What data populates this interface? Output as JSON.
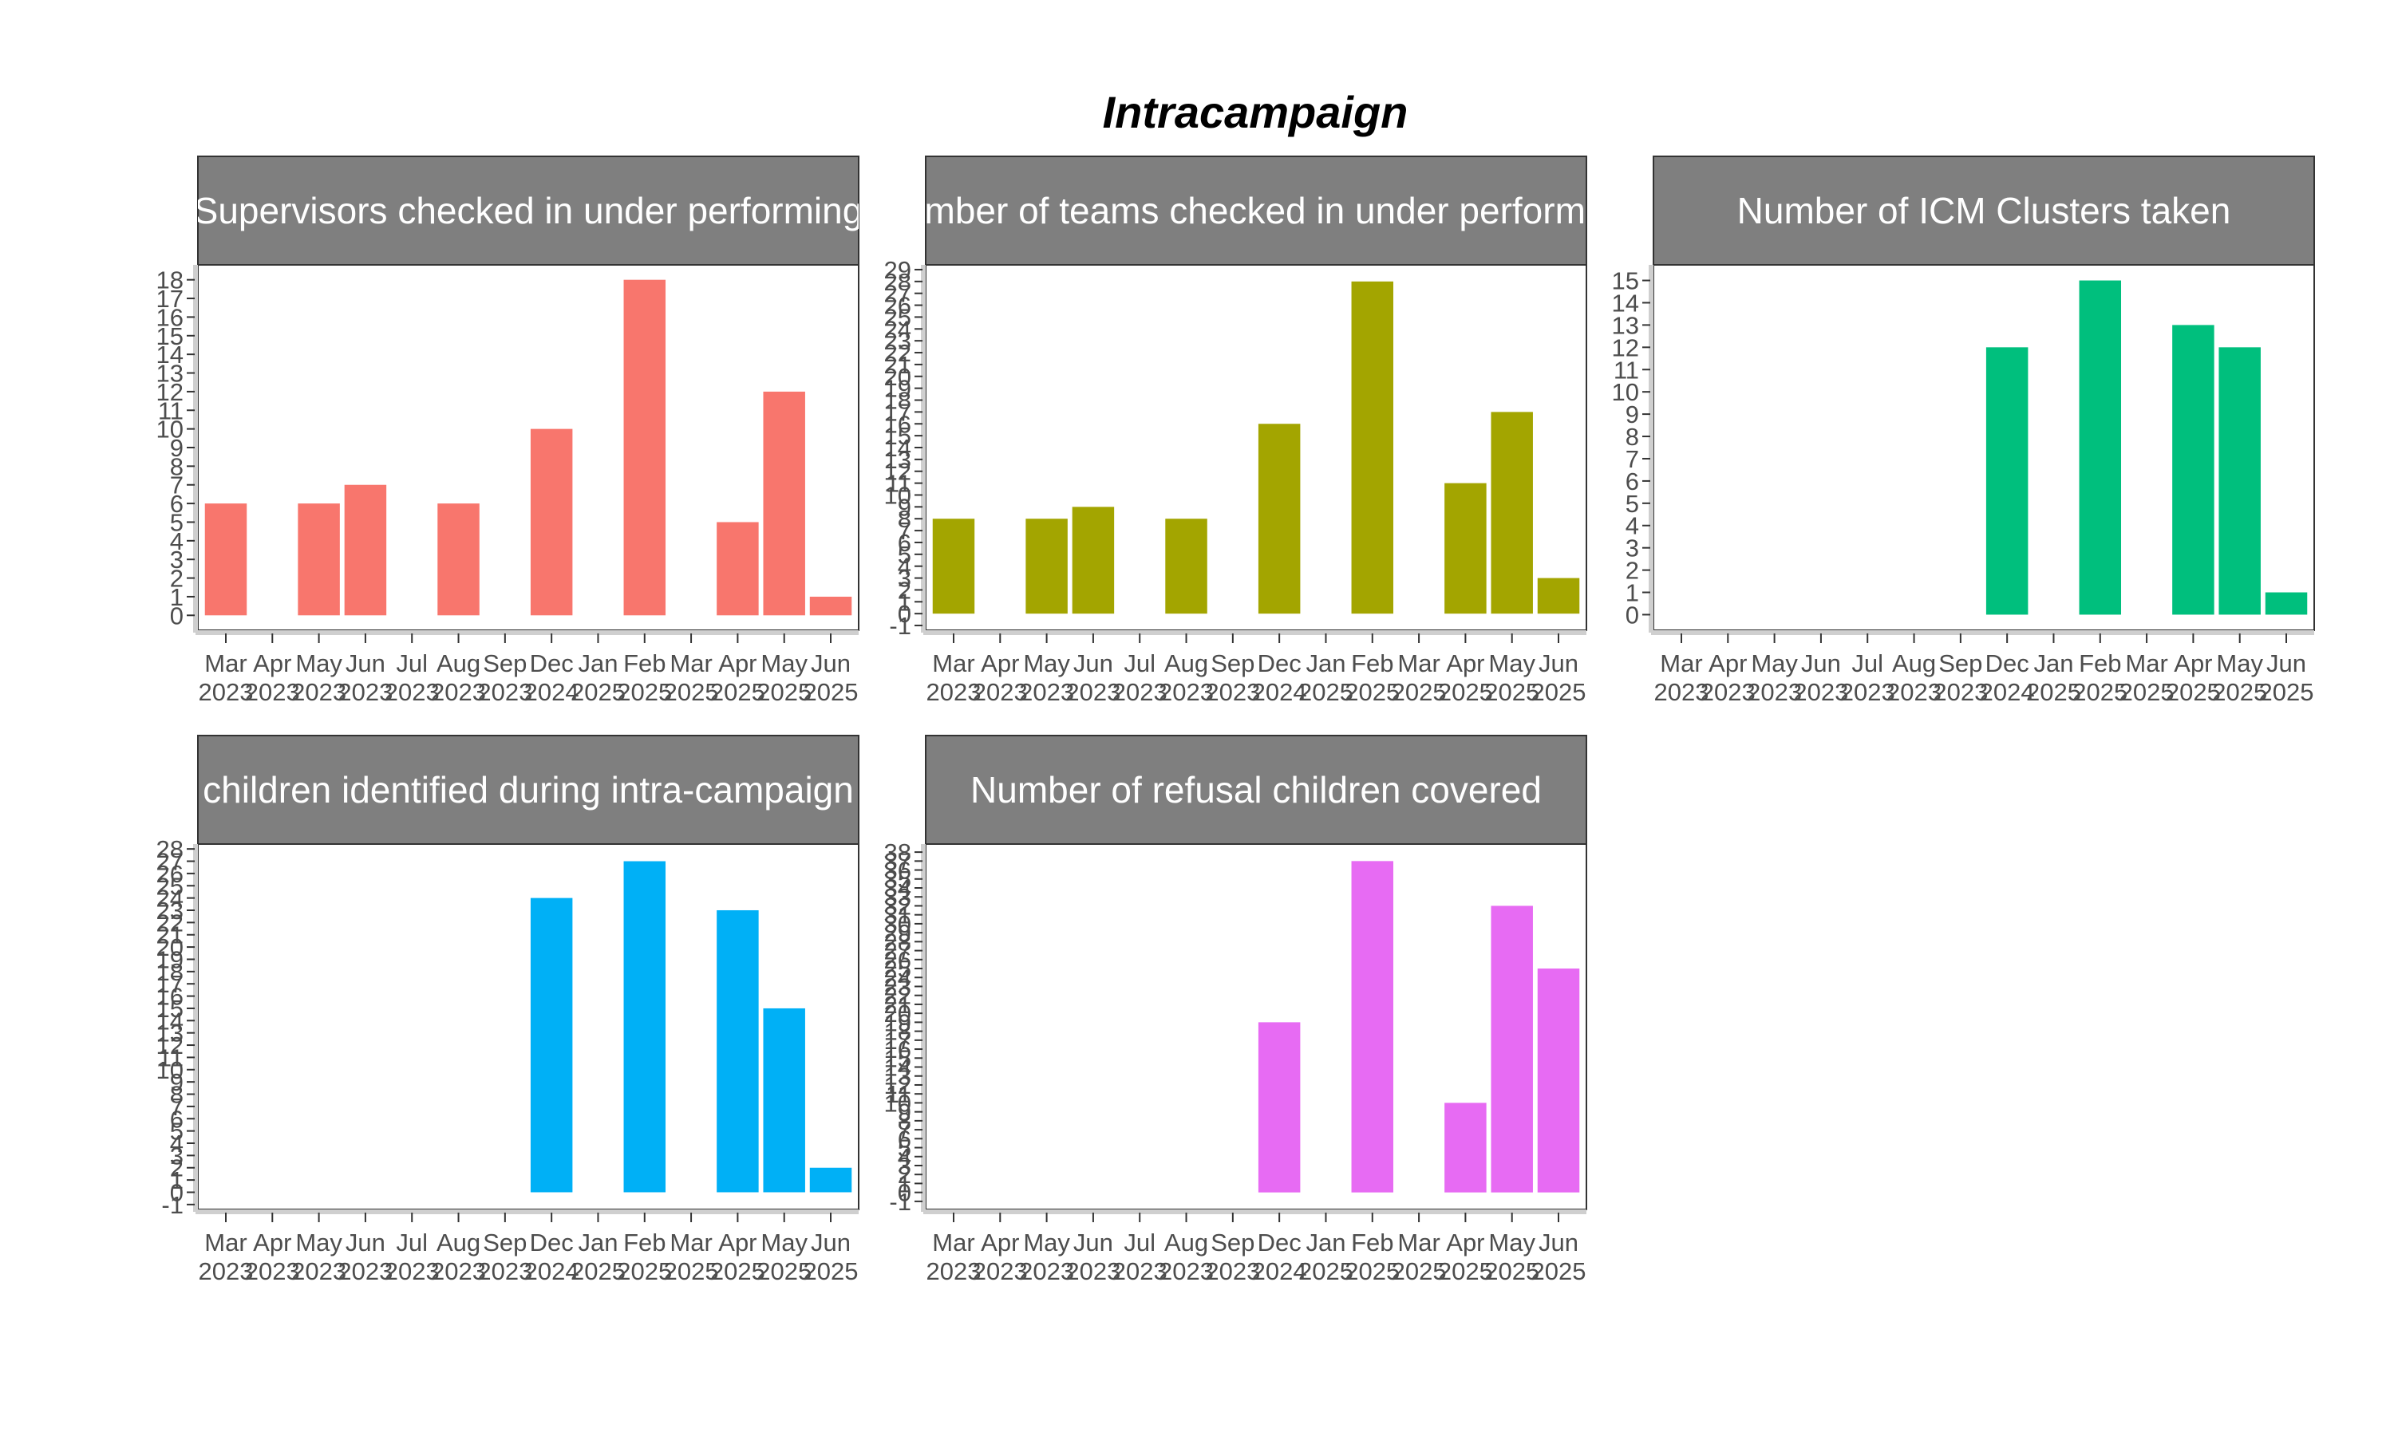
{
  "figure": {
    "title": "Intracampaign"
  },
  "colors": {
    "strip_fill": "#7f7f7f",
    "strip_text": "#ffffff",
    "axis_text": "#4d4d4d",
    "axis_line": "#cfcfcf"
  },
  "chart_data": [
    {
      "type": "bar",
      "title": "Supervisors checked in under performing",
      "color": "#f8766d",
      "categories": [
        {
          "month": "Mar",
          "year": "2023"
        },
        {
          "month": "Apr",
          "year": "2023"
        },
        {
          "month": "May",
          "year": "2023"
        },
        {
          "month": "Jun",
          "year": "2023"
        },
        {
          "month": "Jul",
          "year": "2023"
        },
        {
          "month": "Aug",
          "year": "2023"
        },
        {
          "month": "Sep",
          "year": "2023"
        },
        {
          "month": "Dec",
          "year": "2024"
        },
        {
          "month": "Jan",
          "year": "2025"
        },
        {
          "month": "Feb",
          "year": "2025"
        },
        {
          "month": "Mar",
          "year": "2025"
        },
        {
          "month": "Apr",
          "year": "2025"
        },
        {
          "month": "May",
          "year": "2025"
        },
        {
          "month": "Jun",
          "year": "2025"
        }
      ],
      "values": [
        6,
        null,
        6,
        7,
        null,
        6,
        null,
        10,
        null,
        18,
        null,
        5,
        12,
        1
      ],
      "ylim": [
        -0.8,
        18.8
      ],
      "yticks": [
        0,
        1,
        2,
        3,
        4,
        5,
        6,
        7,
        8,
        9,
        10,
        11,
        12,
        13,
        14,
        15,
        16,
        17,
        18
      ]
    },
    {
      "type": "bar",
      "title": "Number of teams checked in under performing",
      "color": "#a3a500",
      "categories": [
        {
          "month": "Mar",
          "year": "2023"
        },
        {
          "month": "Apr",
          "year": "2023"
        },
        {
          "month": "May",
          "year": "2023"
        },
        {
          "month": "Jun",
          "year": "2023"
        },
        {
          "month": "Jul",
          "year": "2023"
        },
        {
          "month": "Aug",
          "year": "2023"
        },
        {
          "month": "Sep",
          "year": "2023"
        },
        {
          "month": "Dec",
          "year": "2024"
        },
        {
          "month": "Jan",
          "year": "2025"
        },
        {
          "month": "Feb",
          "year": "2025"
        },
        {
          "month": "Mar",
          "year": "2025"
        },
        {
          "month": "Apr",
          "year": "2025"
        },
        {
          "month": "May",
          "year": "2025"
        },
        {
          "month": "Jun",
          "year": "2025"
        }
      ],
      "values": [
        8,
        null,
        8,
        9,
        null,
        8,
        null,
        16,
        null,
        28,
        null,
        11,
        17,
        3
      ],
      "ylim": [
        -1.4,
        29.4
      ],
      "yticks": [
        -1,
        0,
        1,
        2,
        3,
        4,
        5,
        6,
        7,
        8,
        9,
        10,
        11,
        12,
        13,
        14,
        15,
        16,
        17,
        18,
        19,
        20,
        21,
        22,
        23,
        24,
        25,
        26,
        27,
        28,
        29
      ]
    },
    {
      "type": "bar",
      "title": "Number of ICM Clusters taken",
      "color": "#00bf7d",
      "categories": [
        {
          "month": "Mar",
          "year": "2023"
        },
        {
          "month": "Apr",
          "year": "2023"
        },
        {
          "month": "May",
          "year": "2023"
        },
        {
          "month": "Jun",
          "year": "2023"
        },
        {
          "month": "Jul",
          "year": "2023"
        },
        {
          "month": "Aug",
          "year": "2023"
        },
        {
          "month": "Sep",
          "year": "2023"
        },
        {
          "month": "Dec",
          "year": "2024"
        },
        {
          "month": "Jan",
          "year": "2025"
        },
        {
          "month": "Feb",
          "year": "2025"
        },
        {
          "month": "Mar",
          "year": "2025"
        },
        {
          "month": "Apr",
          "year": "2025"
        },
        {
          "month": "May",
          "year": "2025"
        },
        {
          "month": "Jun",
          "year": "2025"
        }
      ],
      "values": [
        null,
        null,
        null,
        null,
        null,
        null,
        null,
        12,
        null,
        15,
        null,
        13,
        12,
        1
      ],
      "ylim": [
        -0.7,
        15.7
      ],
      "yticks": [
        0,
        1,
        2,
        3,
        4,
        5,
        6,
        7,
        8,
        9,
        10,
        11,
        12,
        13,
        14,
        15
      ]
    },
    {
      "type": "bar",
      "title": "Number of children identified during intra-campaign monitoring",
      "color": "#00b0f6",
      "categories": [
        {
          "month": "Mar",
          "year": "2023"
        },
        {
          "month": "Apr",
          "year": "2023"
        },
        {
          "month": "May",
          "year": "2023"
        },
        {
          "month": "Jun",
          "year": "2023"
        },
        {
          "month": "Jul",
          "year": "2023"
        },
        {
          "month": "Aug",
          "year": "2023"
        },
        {
          "month": "Sep",
          "year": "2023"
        },
        {
          "month": "Dec",
          "year": "2024"
        },
        {
          "month": "Jan",
          "year": "2025"
        },
        {
          "month": "Feb",
          "year": "2025"
        },
        {
          "month": "Mar",
          "year": "2025"
        },
        {
          "month": "Apr",
          "year": "2025"
        },
        {
          "month": "May",
          "year": "2025"
        },
        {
          "month": "Jun",
          "year": "2025"
        }
      ],
      "values": [
        null,
        null,
        null,
        null,
        null,
        null,
        null,
        24,
        null,
        27,
        null,
        23,
        15,
        2
      ],
      "ylim": [
        -1.4,
        28.4
      ],
      "yticks": [
        -1,
        0,
        1,
        2,
        3,
        4,
        5,
        6,
        7,
        8,
        9,
        10,
        11,
        12,
        13,
        14,
        15,
        16,
        17,
        18,
        19,
        20,
        21,
        22,
        23,
        24,
        25,
        26,
        27,
        28
      ]
    },
    {
      "type": "bar",
      "title": "Number of refusal children covered",
      "color": "#e76bf3",
      "categories": [
        {
          "month": "Mar",
          "year": "2023"
        },
        {
          "month": "Apr",
          "year": "2023"
        },
        {
          "month": "May",
          "year": "2023"
        },
        {
          "month": "Jun",
          "year": "2023"
        },
        {
          "month": "Jul",
          "year": "2023"
        },
        {
          "month": "Aug",
          "year": "2023"
        },
        {
          "month": "Sep",
          "year": "2023"
        },
        {
          "month": "Dec",
          "year": "2024"
        },
        {
          "month": "Jan",
          "year": "2025"
        },
        {
          "month": "Feb",
          "year": "2025"
        },
        {
          "month": "Mar",
          "year": "2025"
        },
        {
          "month": "Apr",
          "year": "2025"
        },
        {
          "month": "May",
          "year": "2025"
        },
        {
          "month": "Jun",
          "year": "2025"
        }
      ],
      "values": [
        null,
        null,
        null,
        null,
        null,
        null,
        null,
        19,
        null,
        37,
        null,
        10,
        32,
        25
      ],
      "ylim": [
        -1.9,
        38.9
      ],
      "yticks": [
        -1,
        0,
        1,
        2,
        3,
        4,
        5,
        6,
        7,
        8,
        9,
        10,
        11,
        12,
        13,
        14,
        15,
        16,
        17,
        18,
        19,
        20,
        21,
        22,
        23,
        24,
        25,
        26,
        27,
        28,
        29,
        30,
        31,
        32,
        33,
        34,
        35,
        36,
        37,
        38
      ]
    }
  ]
}
